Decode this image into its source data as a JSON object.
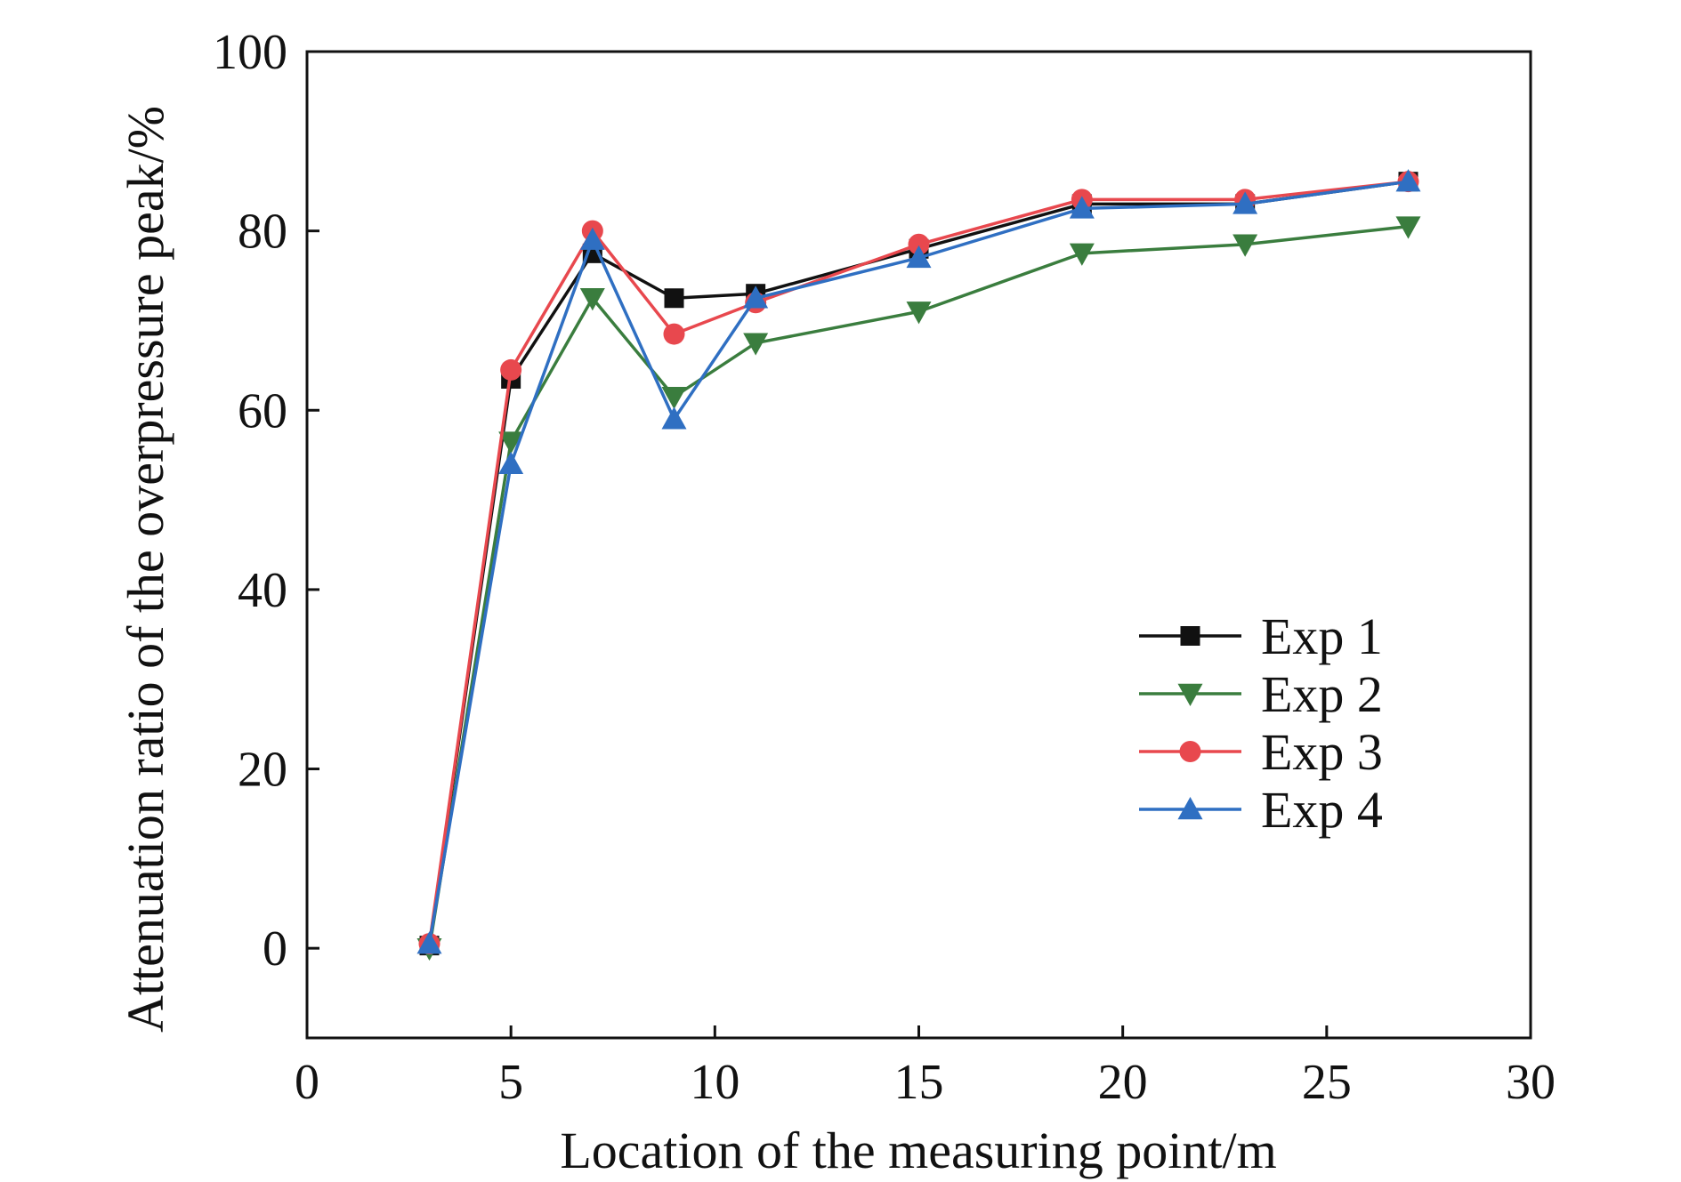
{
  "chart_data": {
    "type": "line",
    "title": "",
    "xlabel": "Location of the measuring point/m",
    "ylabel": "Attenuation ratio of the overpressure peak/%",
    "xlim": [
      0,
      30
    ],
    "ylim": [
      -10,
      100
    ],
    "xticks": [
      0,
      5,
      10,
      15,
      20,
      25,
      30
    ],
    "yticks": [
      0,
      20,
      40,
      60,
      80,
      100
    ],
    "grid": false,
    "legend_position": "center-right",
    "x": [
      3,
      5,
      7,
      9,
      11,
      15,
      19,
      23,
      27
    ],
    "series": [
      {
        "name": "Exp 1",
        "color": "#111111",
        "marker": "square",
        "values": [
          0.3,
          63.5,
          77.5,
          72.5,
          73.0,
          78.0,
          83.0,
          83.0,
          85.5
        ]
      },
      {
        "name": "Exp 2",
        "color": "#3a7d3e",
        "marker": "triangle-down",
        "values": [
          0.0,
          56.5,
          72.5,
          61.5,
          67.5,
          71.0,
          77.5,
          78.5,
          80.5
        ]
      },
      {
        "name": "Exp 3",
        "color": "#e8484e",
        "marker": "circle",
        "values": [
          0.5,
          64.5,
          80.0,
          68.5,
          72.0,
          78.5,
          83.5,
          83.5,
          85.5
        ]
      },
      {
        "name": "Exp 4",
        "color": "#2f6fc2",
        "marker": "triangle-up",
        "values": [
          0.5,
          54.0,
          79.0,
          59.0,
          72.5,
          77.0,
          82.5,
          83.0,
          85.5
        ]
      }
    ]
  }
}
